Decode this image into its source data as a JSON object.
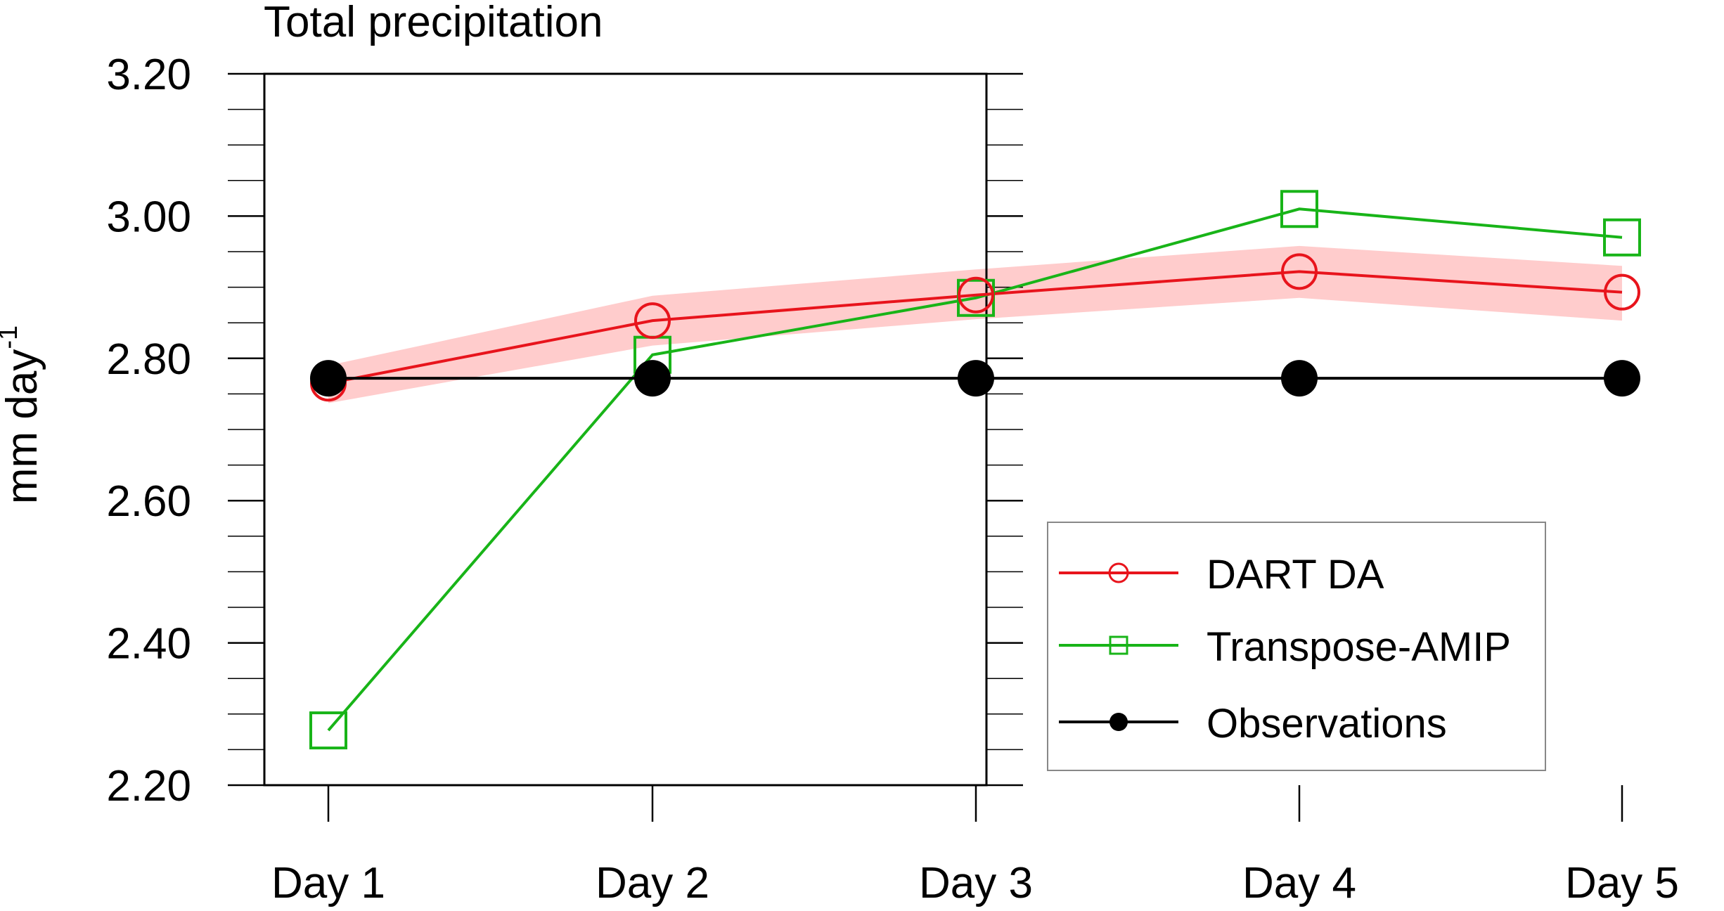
{
  "chart_data": {
    "type": "line",
    "title": "Total precipitation",
    "ylabel_main": "mm day",
    "ylabel_sup": "-1",
    "categories": [
      "Day 1",
      "Day 2",
      "Day 3",
      "Day 4",
      "Day 5"
    ],
    "ylim": [
      2.2,
      3.2
    ],
    "yticks": [
      "2.20",
      "2.40",
      "2.60",
      "2.80",
      "3.00",
      "3.20"
    ],
    "ytick_values": [
      2.2,
      2.4,
      2.6,
      2.8,
      3.0,
      3.2
    ],
    "grid": false,
    "legend_position": "bottom-right",
    "series": [
      {
        "name": "DART DA",
        "marker": "circle-open",
        "color": "#e8141c",
        "values": [
          2.765,
          2.853,
          2.889,
          2.922,
          2.893
        ],
        "band_low": [
          2.737,
          2.818,
          2.855,
          2.885,
          2.853
        ],
        "band_high": [
          2.79,
          2.888,
          2.925,
          2.958,
          2.93
        ],
        "band_color": "#ffcccc"
      },
      {
        "name": "Transpose-AMIP",
        "marker": "square-open",
        "color": "#18b418",
        "values": [
          2.277,
          2.805,
          2.885,
          3.01,
          2.97
        ]
      },
      {
        "name": "Observations",
        "marker": "circle-filled",
        "color": "#000000",
        "values": [
          2.772,
          2.772,
          2.772,
          2.772,
          2.772
        ]
      }
    ]
  }
}
